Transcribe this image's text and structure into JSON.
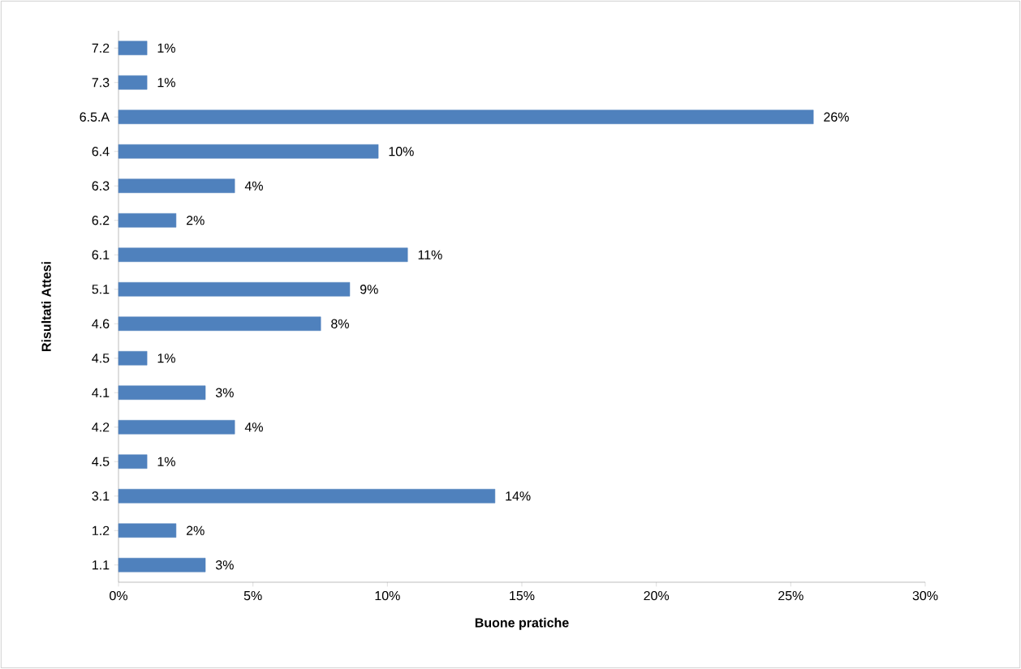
{
  "chart_data": {
    "type": "bar",
    "orientation": "horizontal",
    "xlabel": "Buone pratiche",
    "ylabel": "Risultati Attesi",
    "categories": [
      "7.2",
      "7.3",
      "6.5.A",
      "6.4",
      "6.3",
      "6.2",
      "6.1",
      "5.1",
      "4.6",
      "4.5",
      "4.1",
      "4.2",
      "4.5",
      "3.1",
      "1.2",
      "1.1"
    ],
    "values": [
      1.06,
      1.06,
      25.84,
      9.66,
      4.32,
      2.14,
      10.75,
      8.6,
      7.52,
      1.06,
      3.23,
      4.32,
      1.06,
      14.0,
      2.14,
      3.23
    ],
    "value_labels": [
      "1%",
      "1%",
      "26%",
      "10%",
      "4%",
      "2%",
      "11%",
      "9%",
      "8%",
      "1%",
      "3%",
      "4%",
      "1%",
      "14%",
      "2%",
      "3%"
    ],
    "color": "#4f81bd",
    "xlim": [
      0,
      30
    ],
    "xticks": [
      {
        "value": 0,
        "label": "0%"
      },
      {
        "value": 5,
        "label": "5%"
      },
      {
        "value": 10,
        "label": "10%"
      },
      {
        "value": 15,
        "label": "15%"
      },
      {
        "value": 20,
        "label": "20%"
      },
      {
        "value": 25,
        "label": "25%"
      },
      {
        "value": 30,
        "label": "30%"
      }
    ],
    "grid": false
  }
}
